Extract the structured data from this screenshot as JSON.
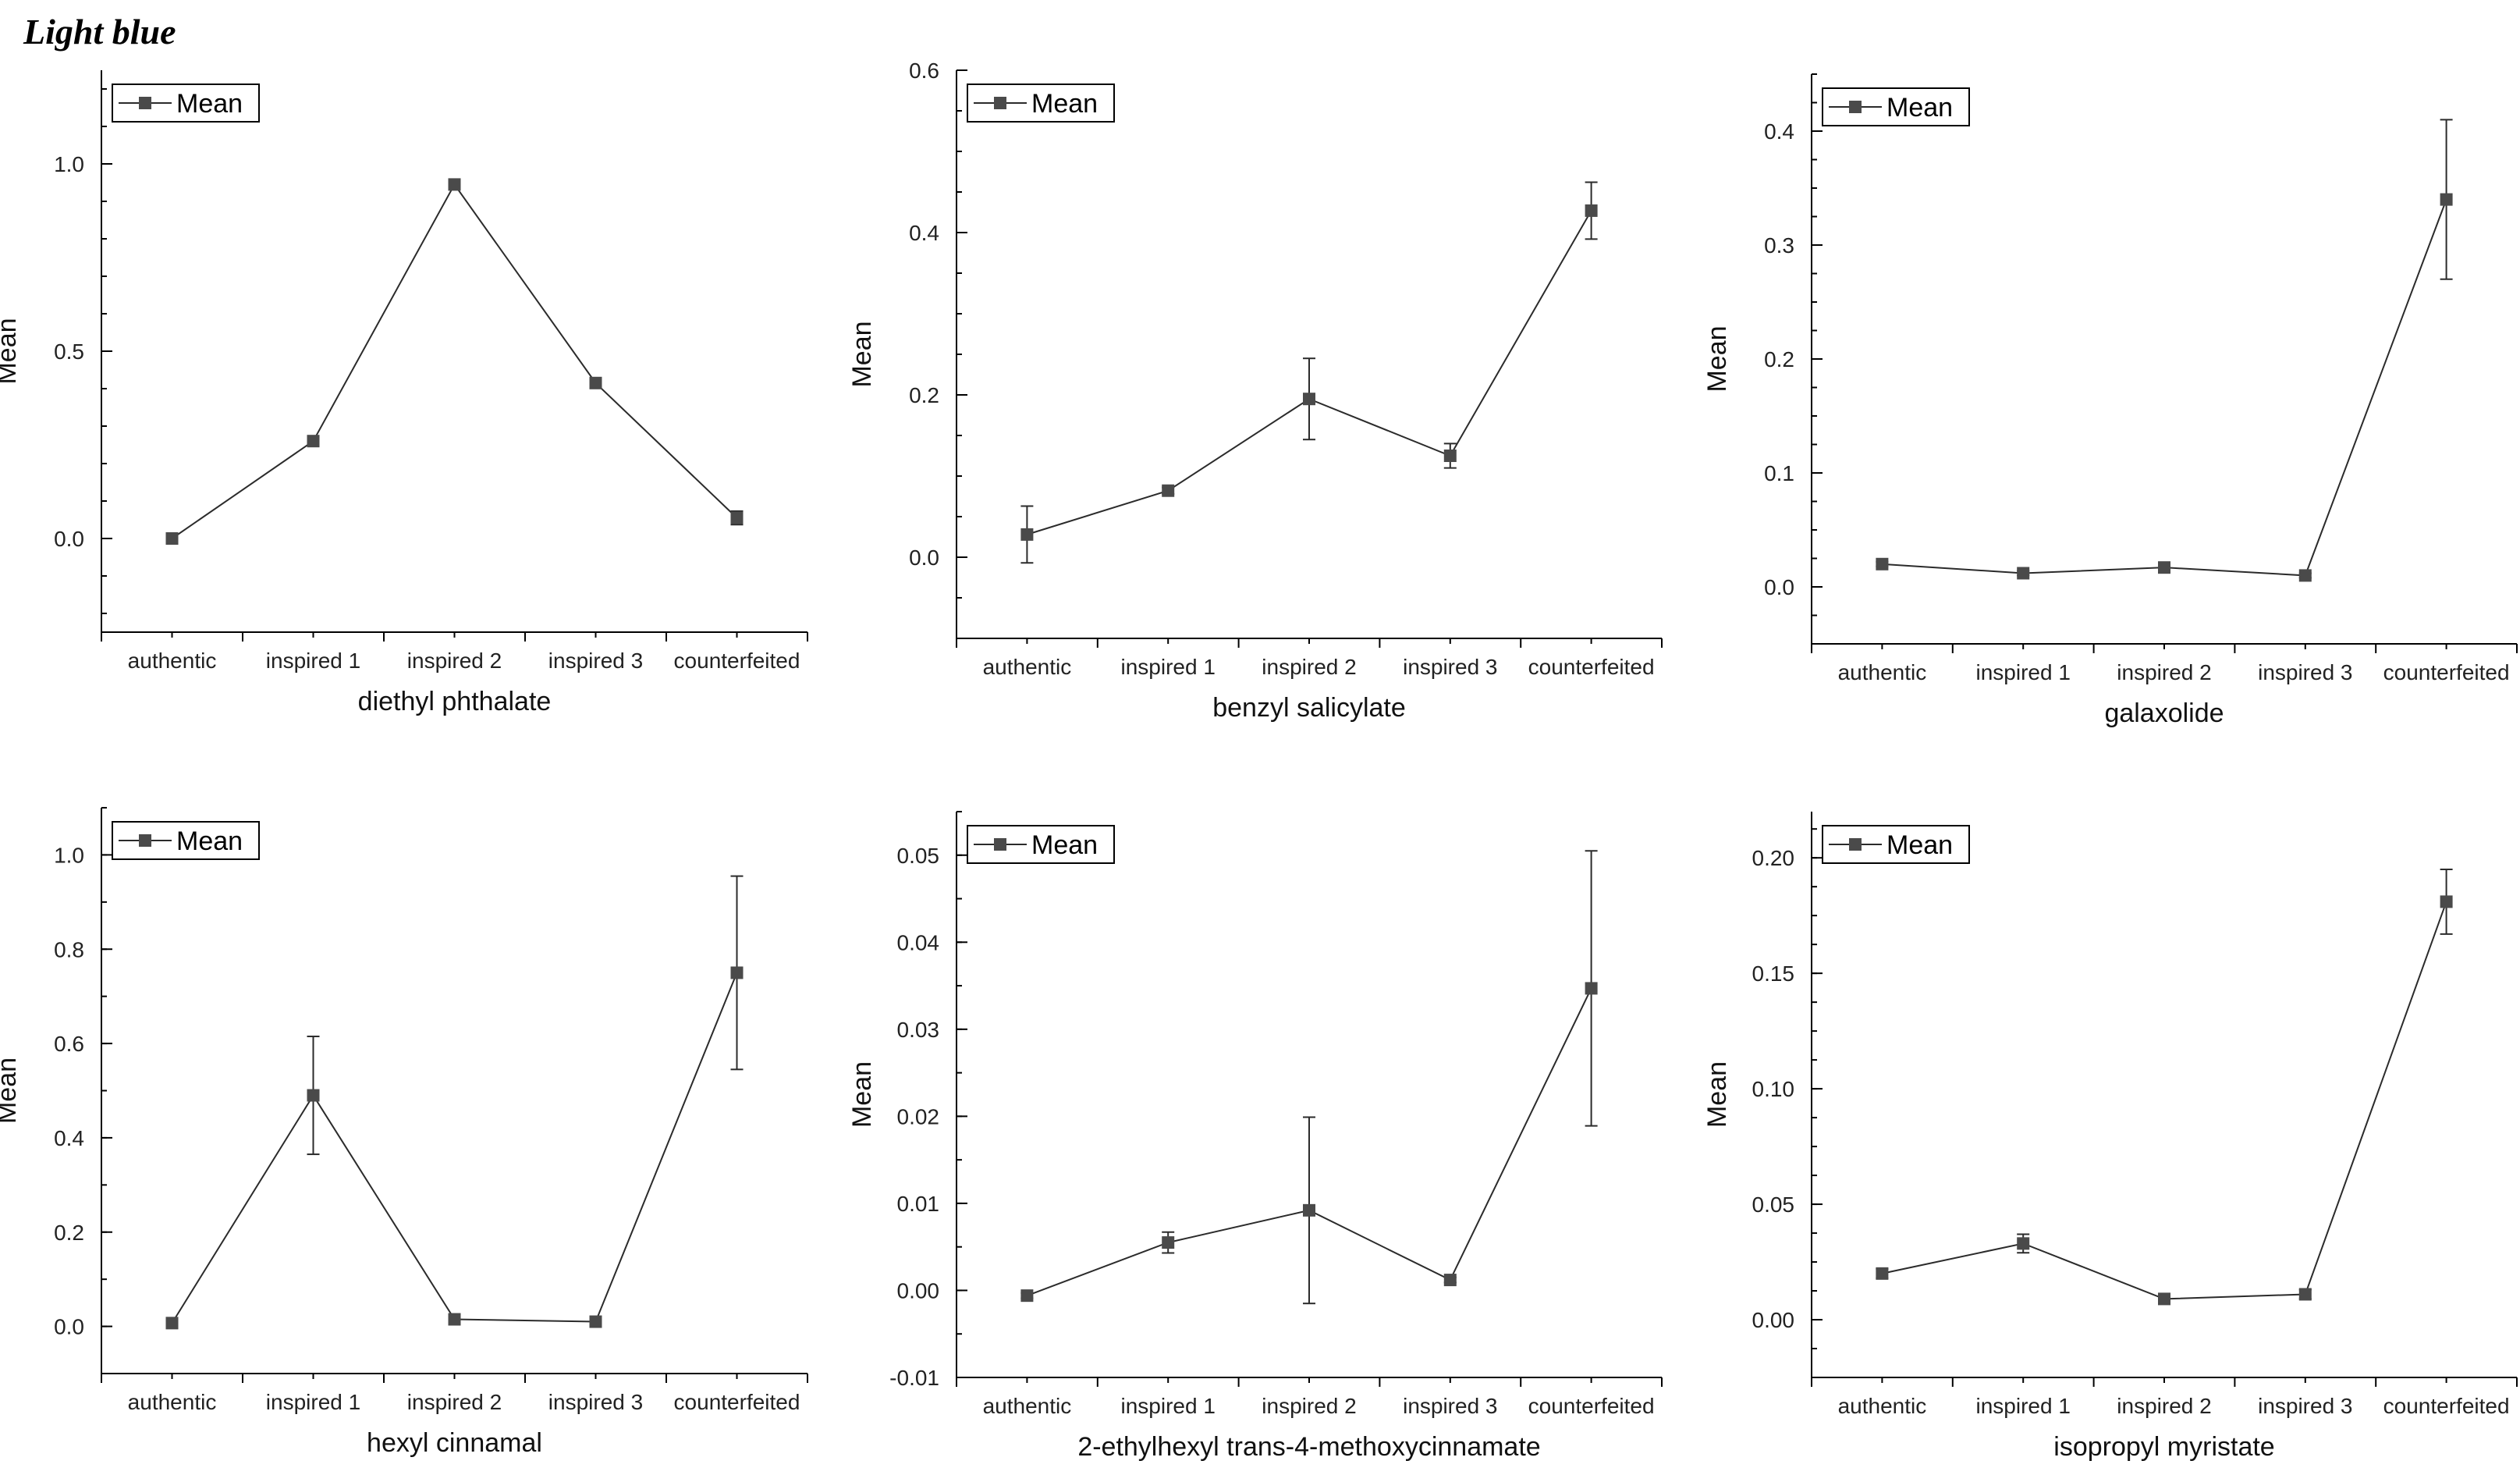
{
  "page_title": "Light blue",
  "colors": {
    "series": "#4a4a4a",
    "line": "#2b2b2b",
    "axis": "#000000"
  },
  "chart_data": [
    {
      "type": "line",
      "title": "",
      "xlabel": "diethyl phthalate",
      "ylabel": "Mean",
      "legend": "Mean",
      "legend_position": "top-left",
      "categories": [
        "authentic",
        "inspired 1",
        "inspired 2",
        "inspired 3",
        "counterfeited"
      ],
      "ylim": [
        -0.25,
        1.25
      ],
      "yticks": [
        0.0,
        0.5,
        1.0
      ],
      "ytick_labels": [
        "0.0",
        "0.5",
        "1.0"
      ],
      "minor_step": 0.1,
      "values": [
        0.0,
        0.26,
        0.945,
        0.415,
        0.055
      ],
      "errors": [
        0.004,
        0.012,
        0.01,
        0.01,
        0.018
      ]
    },
    {
      "type": "line",
      "title": "",
      "xlabel": "benzyl salicylate",
      "ylabel": "Mean",
      "legend": "Mean",
      "legend_position": "top-left",
      "categories": [
        "authentic",
        "inspired 1",
        "inspired 2",
        "inspired 3",
        "counterfeited"
      ],
      "ylim": [
        -0.1,
        0.6
      ],
      "yticks": [
        0.0,
        0.2,
        0.4,
        0.6
      ],
      "ytick_labels": [
        "0.0",
        "0.2",
        "0.4",
        "0.6"
      ],
      "minor_step": 0.05,
      "values": [
        0.028,
        0.082,
        0.195,
        0.125,
        0.427
      ],
      "errors": [
        0.035,
        0.004,
        0.05,
        0.015,
        0.035
      ]
    },
    {
      "type": "line",
      "title": "",
      "xlabel": "galaxolide",
      "ylabel": "Mean",
      "legend": "Mean",
      "legend_position": "top-left",
      "categories": [
        "authentic",
        "inspired 1",
        "inspired 2",
        "inspired 3",
        "counterfeited"
      ],
      "ylim": [
        -0.05,
        0.45
      ],
      "yticks": [
        0.0,
        0.1,
        0.2,
        0.3,
        0.4
      ],
      "ytick_labels": [
        "0.0",
        "0.1",
        "0.2",
        "0.3",
        "0.4"
      ],
      "minor_step": 0.025,
      "values": [
        0.02,
        0.012,
        0.017,
        0.01,
        0.34
      ],
      "errors": [
        0.002,
        0.002,
        0.002,
        0.002,
        0.07
      ]
    },
    {
      "type": "line",
      "title": "",
      "xlabel": "hexyl cinnamal",
      "ylabel": "Mean",
      "legend": "Mean",
      "legend_position": "top-left",
      "categories": [
        "authentic",
        "inspired 1",
        "inspired 2",
        "inspired 3",
        "counterfeited"
      ],
      "ylim": [
        -0.1,
        1.1
      ],
      "yticks": [
        0.0,
        0.2,
        0.4,
        0.6,
        0.8,
        1.0
      ],
      "ytick_labels": [
        "0.0",
        "0.2",
        "0.4",
        "0.6",
        "0.8",
        "1.0"
      ],
      "minor_step": 0.1,
      "values": [
        0.007,
        0.49,
        0.015,
        0.01,
        0.75
      ],
      "errors": [
        0.003,
        0.125,
        0.005,
        0.003,
        0.205
      ]
    },
    {
      "type": "line",
      "title": "",
      "xlabel": "2-ethylhexyl trans-4-methoxycinnamate",
      "ylabel": "Mean",
      "legend": "Mean",
      "legend_position": "top-left",
      "categories": [
        "authentic",
        "inspired 1",
        "inspired 2",
        "inspired 3",
        "counterfeited"
      ],
      "ylim": [
        -0.01,
        0.055
      ],
      "yticks": [
        -0.01,
        0.0,
        0.01,
        0.02,
        0.03,
        0.04,
        0.05
      ],
      "ytick_labels": [
        "-0.01",
        "0.00",
        "0.01",
        "0.02",
        "0.03",
        "0.04",
        "0.05"
      ],
      "minor_step": 0.005,
      "values": [
        -0.0006,
        0.0055,
        0.0092,
        0.0012,
        0.0347
      ],
      "errors": [
        0.0003,
        0.0012,
        0.0107,
        0.0003,
        0.0158
      ]
    },
    {
      "type": "line",
      "title": "",
      "xlabel": "isopropyl myristate",
      "ylabel": "Mean",
      "legend": "Mean",
      "legend_position": "top-left",
      "categories": [
        "authentic",
        "inspired 1",
        "inspired 2",
        "inspired 3",
        "counterfeited"
      ],
      "ylim": [
        -0.025,
        0.22
      ],
      "yticks": [
        0.0,
        0.05,
        0.1,
        0.15,
        0.2
      ],
      "ytick_labels": [
        "0.00",
        "0.05",
        "0.10",
        "0.15",
        "0.20"
      ],
      "minor_step": 0.0125,
      "values": [
        0.02,
        0.033,
        0.009,
        0.011,
        0.181
      ],
      "errors": [
        0.002,
        0.004,
        0.002,
        0.002,
        0.014
      ]
    }
  ]
}
